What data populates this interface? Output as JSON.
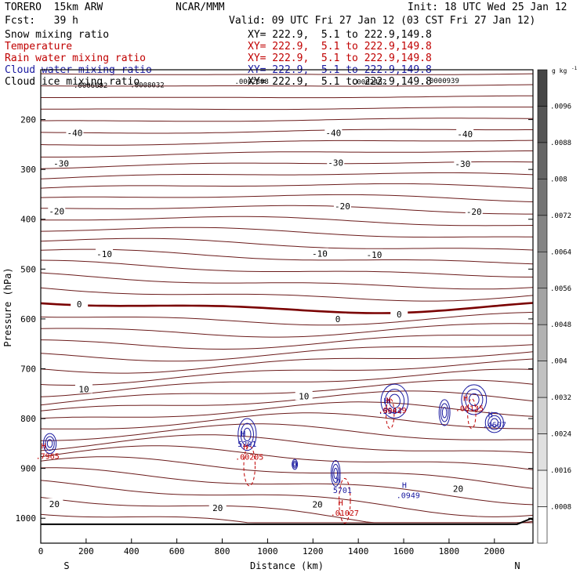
{
  "header": {
    "model": "TORERO  15km ARW",
    "org": "NCAR/MMM",
    "init": "Init: 18 UTC Wed 25 Jan 12",
    "fcst": "Fcst:   39 h",
    "valid": "Valid: 09 UTC Fri 27 Jan 12 (03 CST Fri 27 Jan 12)"
  },
  "fields": [
    {
      "name": "Snow mixing ratio",
      "xy": "XY= 222.9,  5.1 to 222.9,149.8",
      "color": "#000000"
    },
    {
      "name": "Temperature",
      "xy": "XY= 222.9,  5.1 to 222.9,149.8",
      "color": "#c00000"
    },
    {
      "name": "Rain water mixing ratio",
      "xy": "XY= 222.9,  5.1 to 222.9,149.8",
      "color": "#c00000"
    },
    {
      "name": "Cloud water mixing ratio",
      "xy": "XY= 222.9,  5.1 to 222.9,149.8",
      "color": "#1a1aa0"
    },
    {
      "name": "Cloud ice mixing ratio",
      "xy": "XY= 222.9,  5.1 to 222.9,149.8",
      "color": "#000000"
    }
  ],
  "chart_data": {
    "type": "contour",
    "xlabel": "Distance (km)",
    "ylabel": "Pressure (hPa)",
    "xlim": [
      0,
      2170
    ],
    "ylim": [
      1050,
      100
    ],
    "xticks": [
      0,
      200,
      400,
      600,
      800,
      1000,
      1200,
      1400,
      1600,
      1800,
      2000
    ],
    "yticks": [
      200,
      300,
      400,
      500,
      600,
      700,
      800,
      900,
      1000
    ],
    "endpoint_labels": {
      "left": "S",
      "right": "N"
    },
    "colorbar": {
      "unit": "g kg",
      "unit_exp": "-1",
      "ticks": [
        ".0096",
        ".0088",
        ".008",
        ".0072",
        ".0064",
        ".0056",
        ".0048",
        ".004",
        ".0032",
        ".0024",
        ".0016",
        ".0008"
      ],
      "levels": 13
    },
    "temperature_labels": [
      {
        "text": "-40",
        "x": 150,
        "p": 227
      },
      {
        "text": "-40",
        "x": 1290,
        "p": 227
      },
      {
        "text": "-40",
        "x": 1870,
        "p": 229
      },
      {
        "text": "-30",
        "x": 90,
        "p": 288
      },
      {
        "text": "-30",
        "x": 1300,
        "p": 286
      },
      {
        "text": "-30",
        "x": 1860,
        "p": 289
      },
      {
        "text": "-20",
        "x": 70,
        "p": 384
      },
      {
        "text": "-20",
        "x": 1330,
        "p": 374
      },
      {
        "text": "-20",
        "x": 1910,
        "p": 385
      },
      {
        "text": "-10",
        "x": 280,
        "p": 470
      },
      {
        "text": "-10",
        "x": 1230,
        "p": 469
      },
      {
        "text": "-10",
        "x": 1470,
        "p": 471
      },
      {
        "text": "0",
        "x": 170,
        "p": 570
      },
      {
        "text": "0",
        "x": 1310,
        "p": 600
      },
      {
        "text": "0",
        "x": 1580,
        "p": 591
      },
      {
        "text": "10",
        "x": 190,
        "p": 741
      },
      {
        "text": "10",
        "x": 1160,
        "p": 755
      },
      {
        "text": "20",
        "x": 60,
        "p": 971
      },
      {
        "text": "20",
        "x": 780,
        "p": 979
      },
      {
        "text": "20",
        "x": 1220,
        "p": 972
      },
      {
        "text": "20",
        "x": 1840,
        "p": 941
      }
    ],
    "top_labels": [
      {
        "text": ".0006692",
        "x": 220,
        "p": 136
      },
      {
        "text": ".0008032",
        "x": 470,
        "p": 135
      },
      {
        "text": ".0002898",
        "x": 930,
        "p": 128
      },
      {
        "text": ".0002452",
        "x": 1450,
        "p": 129
      },
      {
        "text": ".0000939",
        "x": 1770,
        "p": 127
      }
    ],
    "maxima": [
      {
        "text": "5201",
        "x": 910,
        "p": 852,
        "color": "#1a1aa0"
      },
      {
        "text": ".00205",
        "x": 920,
        "p": 878,
        "color": "#c00000"
      },
      {
        "text": "5701",
        "x": 1330,
        "p": 945,
        "color": "#1a1aa0"
      },
      {
        "text": ".01027",
        "x": 1340,
        "p": 990,
        "color": "#c00000"
      },
      {
        "text": ".5584",
        "x": 1540,
        "p": 786,
        "color": "#1a1aa0"
      },
      {
        "text": ".00429",
        "x": 1550,
        "p": 784,
        "color": "#c00000"
      },
      {
        "text": ".06135",
        "x": 1890,
        "p": 780,
        "color": "#c00000"
      },
      {
        "text": ".4607",
        "x": 2000,
        "p": 813,
        "color": "#1a1aa0"
      },
      {
        "text": ".0949",
        "x": 1620,
        "p": 955,
        "color": "#1a1aa0"
      },
      {
        "text": ".7965",
        "x": 30,
        "p": 876,
        "color": "#c00000"
      }
    ]
  }
}
